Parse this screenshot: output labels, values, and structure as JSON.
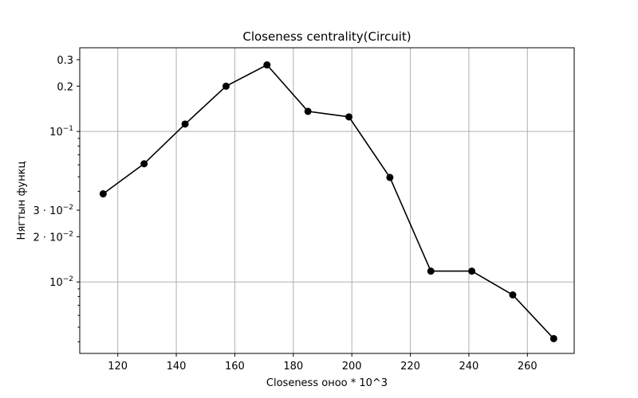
{
  "chart_data": {
    "type": "line",
    "title": "Closeness centrality(Circuit)",
    "xlabel": "Closeness оноо * 10^3",
    "ylabel": "Нягтын функц",
    "x": [
      115,
      129,
      143,
      157,
      171,
      185,
      199,
      213,
      227,
      241,
      255,
      269
    ],
    "series": [
      {
        "values": [
          0.0385,
          0.061,
          0.112,
          0.2,
          0.277,
          0.136,
          0.125,
          0.0495,
          0.0118,
          0.0118,
          0.0082,
          0.0042
        ]
      }
    ],
    "xlim": [
      107,
      276
    ],
    "ylim": [
      0.00335,
      0.36
    ],
    "yscale": "log",
    "grid": true,
    "marker": "circle",
    "color": "#000000",
    "x_ticks": [
      {
        "value": 120,
        "label": "120"
      },
      {
        "value": 140,
        "label": "140"
      },
      {
        "value": 160,
        "label": "160"
      },
      {
        "value": 180,
        "label": "180"
      },
      {
        "value": 200,
        "label": "200"
      },
      {
        "value": 220,
        "label": "220"
      },
      {
        "value": 240,
        "label": "240"
      },
      {
        "value": 260,
        "label": "260"
      }
    ],
    "y_ticks": [
      {
        "value": 0.01,
        "base": "10",
        "exp": "−2",
        "grid": true
      },
      {
        "value": 0.02,
        "base": "2 · 10",
        "exp": "−2",
        "grid": false
      },
      {
        "value": 0.03,
        "base": "3 · 10",
        "exp": "−2",
        "grid": false
      },
      {
        "value": 0.1,
        "base": "10",
        "exp": "−1",
        "grid": true
      },
      {
        "value": 0.2,
        "base": "0.2",
        "exp": "",
        "grid": false
      },
      {
        "value": 0.3,
        "base": "0.3",
        "exp": "",
        "grid": false
      }
    ],
    "y_minor_ticks": [
      0.004,
      0.005,
      0.006,
      0.007,
      0.008,
      0.009,
      0.04,
      0.05,
      0.06,
      0.07,
      0.08,
      0.09
    ]
  }
}
